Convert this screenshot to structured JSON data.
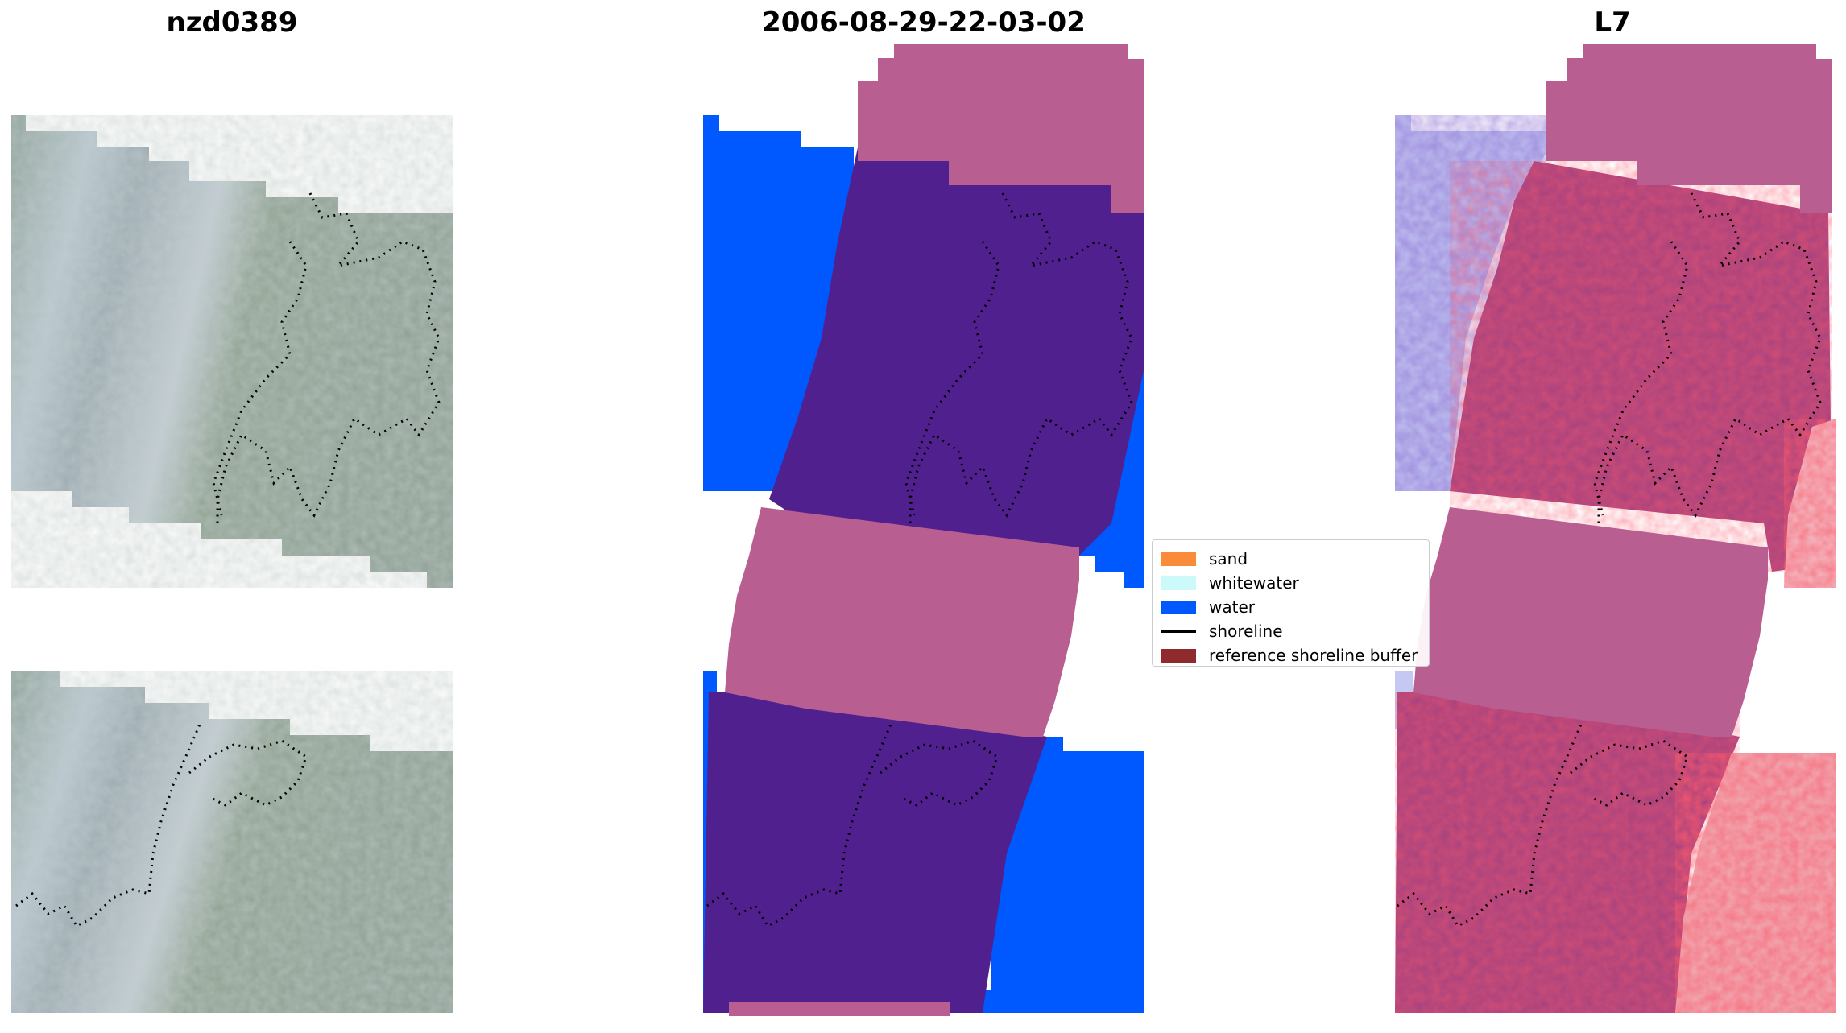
{
  "panels": [
    {
      "title": "nzd0389",
      "kind": "rgb-image"
    },
    {
      "title": "2006-08-29-22-03-02",
      "kind": "classification"
    },
    {
      "title": "L7",
      "kind": "index-image"
    }
  ],
  "legend": {
    "items": [
      {
        "label": "sand",
        "color": "#f98b3a",
        "style": "patch"
      },
      {
        "label": "whitewater",
        "color": "#ccf9fa",
        "style": "patch"
      },
      {
        "label": "water",
        "color": "#0058ff",
        "style": "patch"
      },
      {
        "label": "shoreline",
        "color": "#000000",
        "style": "line"
      },
      {
        "label": "reference shoreline buffer",
        "color": "#8f2b2f",
        "style": "patch"
      }
    ]
  },
  "colors": {
    "buffer_overlay": "#b85e90",
    "land_class": "#50208f",
    "water_class": "#0058ff"
  }
}
